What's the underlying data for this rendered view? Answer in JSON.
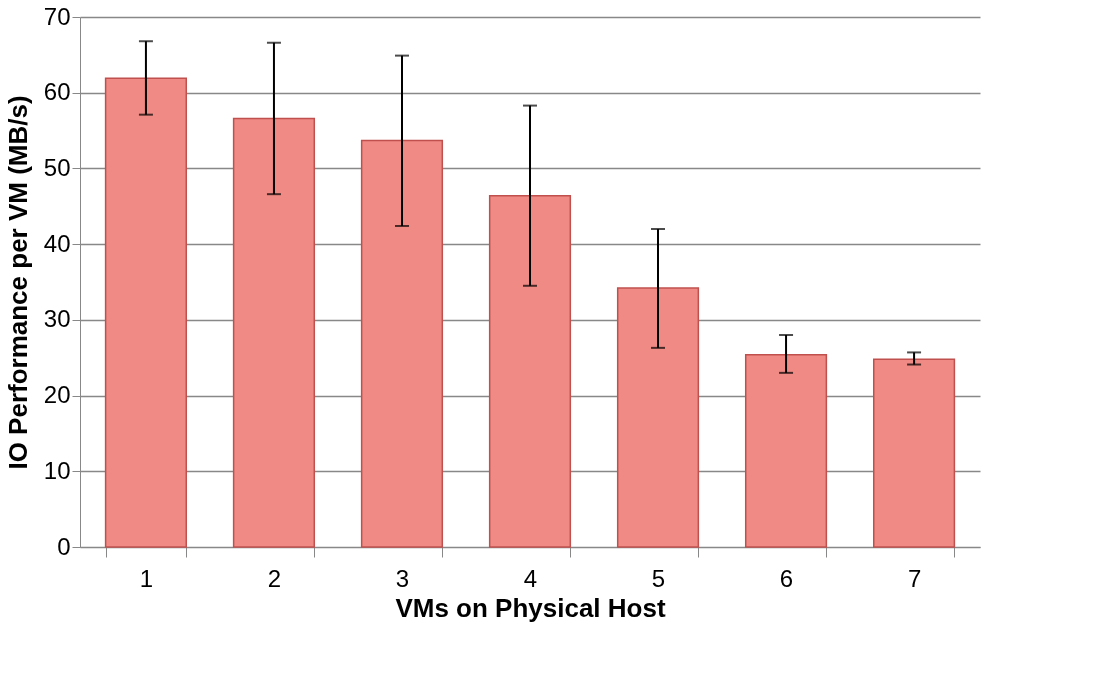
{
  "chart_data": {
    "type": "bar",
    "xlabel": "VMs on Physical Host",
    "ylabel": "IO Performance per VM (MB/s)",
    "categories": [
      "1",
      "2",
      "3",
      "4",
      "5",
      "6",
      "7"
    ],
    "values": [
      61.9,
      56.6,
      53.7,
      46.4,
      34.2,
      25.4,
      24.8
    ],
    "errors": [
      [
        57.1,
        66.8
      ],
      [
        46.6,
        66.6
      ],
      [
        42.4,
        64.9
      ],
      [
        34.5,
        58.3
      ],
      [
        26.3,
        42.0
      ],
      [
        23.0,
        28.0
      ],
      [
        24.1,
        25.7
      ]
    ],
    "color": "#f08a84",
    "ylim": [
      0,
      70
    ],
    "yticks": [
      0,
      10,
      20,
      30,
      40,
      50,
      60,
      70
    ],
    "grid": "y"
  }
}
